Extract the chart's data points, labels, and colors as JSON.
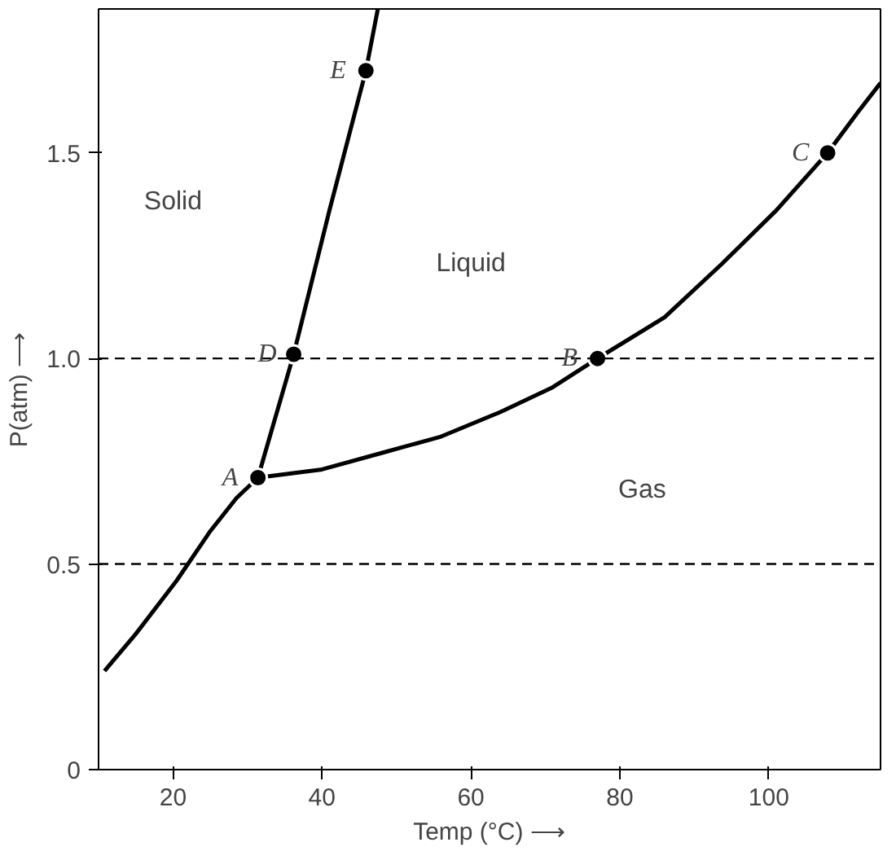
{
  "chart_data": {
    "type": "line",
    "xlabel": "Temp (°C) ⟶",
    "ylabel": "P(atm) ⟶",
    "xlim": [
      10,
      115
    ],
    "ylim": [
      0,
      1.85
    ],
    "xticks": [
      20,
      40,
      60,
      80,
      100
    ],
    "yticks": [
      {
        "value": 0,
        "label": "0"
      },
      {
        "value": 0.5,
        "label": "0.5"
      },
      {
        "value": 1.0,
        "label": "1.0"
      },
      {
        "value": 1.5,
        "label": "1.5"
      }
    ],
    "grid": false,
    "line_style": "solid",
    "series": [
      {
        "color": "#000000",
        "x": [
          10.8,
          15,
          20.5,
          25,
          28.5,
          31.4
        ],
        "values": [
          0.24,
          0.33,
          0.46,
          0.58,
          0.66,
          0.71
        ]
      },
      {
        "type": "line",
        "color": "#000000",
        "x": [
          31.4,
          33.8,
          36.2,
          41,
          45.9,
          47.5
        ],
        "values": [
          0.71,
          0.86,
          1.01,
          1.36,
          1.7,
          1.85
        ]
      },
      {
        "type": "line",
        "color": "#000000",
        "x": [
          31.4,
          40,
          48,
          56,
          64,
          71,
          77,
          86,
          93.7,
          101,
          107.9,
          112,
          115
        ],
        "values": [
          0.71,
          0.73,
          0.77,
          0.81,
          0.87,
          0.93,
          1.0,
          1.1,
          1.23,
          1.36,
          1.5,
          1.6,
          1.67
        ]
      },
      {
        "type": "scatter",
        "color": "#000000",
        "marker": "circle",
        "x": [
          31.4,
          36.2,
          45.9,
          77,
          107.9
        ],
        "values": [
          0.71,
          1.01,
          1.7,
          1.0,
          1.5
        ]
      }
    ],
    "ref_lines": [
      {
        "axis": "y",
        "value": 1.0,
        "line_style": "dashed",
        "color": "#000000"
      },
      {
        "axis": "y",
        "value": 0.5,
        "line_style": "dashed",
        "color": "#000000"
      }
    ],
    "annotations": [
      {
        "text": "A",
        "x": 31.4,
        "y": 0.71
      },
      {
        "text": "D",
        "x": 36.2,
        "y": 1.01
      },
      {
        "text": "E",
        "x": 45.9,
        "y": 1.7
      },
      {
        "text": "B",
        "x": 77,
        "y": 1.0
      },
      {
        "text": "C",
        "x": 107.9,
        "y": 1.5
      },
      {
        "text": "Solid",
        "x": 20,
        "y": 1.38
      },
      {
        "text": "Liquid",
        "x": 60,
        "y": 1.23
      },
      {
        "text": "Gas",
        "x": 83,
        "y": 0.68
      }
    ]
  }
}
